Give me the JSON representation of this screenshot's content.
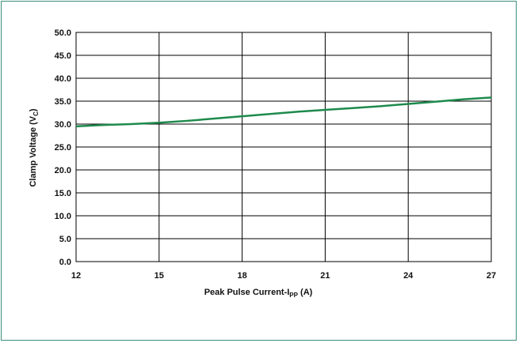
{
  "colors": {
    "series_line": "#1e8a4c",
    "grid": "#000000",
    "frame": "#3a8f7a"
  },
  "chart_data": {
    "type": "line",
    "title": "",
    "xlabel_main": "Peak Pulse Current-I",
    "xlabel_sub": "PP",
    "xlabel_tail": " (A)",
    "ylabel_main": "Clamp Voltage (V",
    "ylabel_sub": "C",
    "ylabel_tail": ")",
    "xlim": [
      12,
      27
    ],
    "ylim": [
      0,
      50
    ],
    "x_ticks": [
      12,
      15,
      18,
      21,
      24,
      27
    ],
    "y_ticks": [
      "0.0",
      "5.0",
      "10.0",
      "15.0",
      "20.0",
      "25.0",
      "30.0",
      "35.0",
      "40.0",
      "45.0",
      "50.0"
    ],
    "grid": true,
    "series": [
      {
        "x": [
          12,
          13,
          14,
          15,
          16,
          17,
          18,
          19,
          20,
          21,
          22,
          23,
          24,
          25,
          26,
          27
        ],
        "values": [
          29.5,
          29.8,
          30.0,
          30.3,
          30.7,
          31.2,
          31.7,
          32.2,
          32.7,
          33.1,
          33.5,
          33.9,
          34.4,
          34.9,
          35.4,
          35.8
        ]
      }
    ]
  }
}
